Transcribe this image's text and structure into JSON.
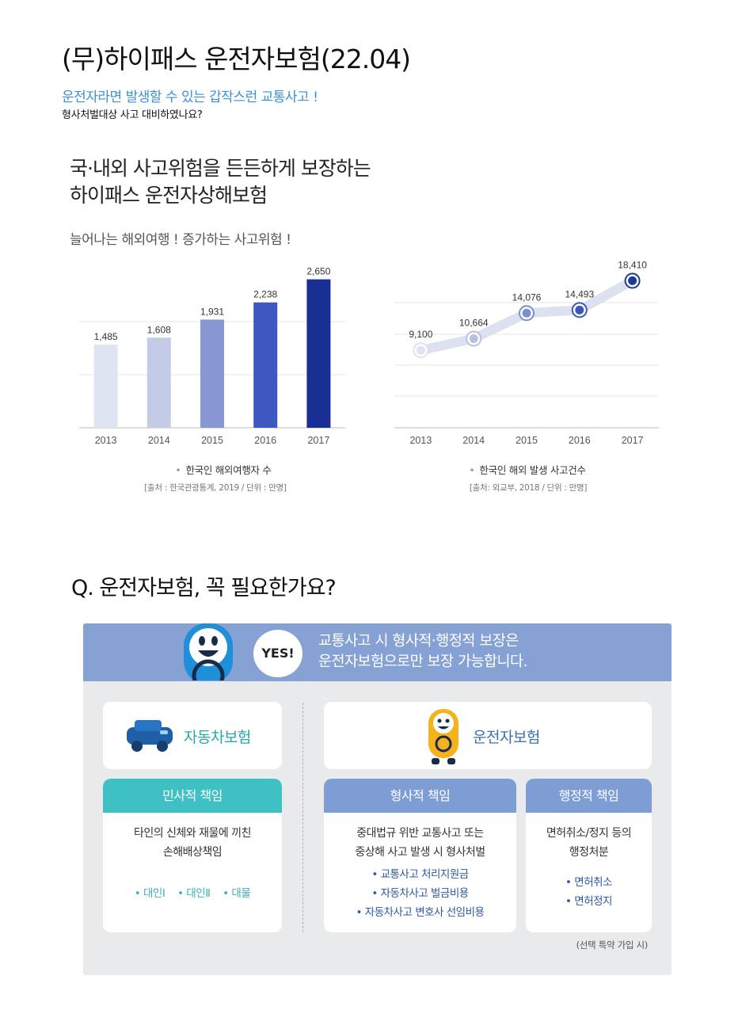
{
  "page": {
    "title": "(무)하이패스 운전자보험(22.04)",
    "subtitle_blue": "운전자라면 발생할 수 있는 갑작스런 교통사고 !",
    "subtitle_black": "형사처벌대상 사고 대비하였나요?"
  },
  "headline": {
    "line1": "국·내외 사고위험을 든든하게 보장하는",
    "line2": "하이패스 운전자상해보험",
    "tagline": "늘어나는 해외여행 ! 증가하는 사고위험 !"
  },
  "chart_data": [
    {
      "type": "bar",
      "categories": [
        "2013",
        "2014",
        "2015",
        "2016",
        "2017"
      ],
      "values": [
        1485,
        1608,
        1931,
        2238,
        2650
      ],
      "value_labels": [
        "1,485",
        "1,608",
        "1,931",
        "2,238",
        "2,650"
      ],
      "caption": "한국인 해외여행자 수",
      "source": "[출처 : 한국관광통계, 2019 / 단위 : 만명]",
      "colors": [
        "#dfe4f2",
        "#c3cbe6",
        "#8797d4",
        "#3e58c2",
        "#1a2f94"
      ]
    },
    {
      "type": "line",
      "categories": [
        "2013",
        "2014",
        "2015",
        "2016",
        "2017"
      ],
      "values": [
        9100,
        10664,
        14076,
        14493,
        18410
      ],
      "value_labels": [
        "9,100",
        "10,664",
        "14,076",
        "14,493",
        "18,410"
      ],
      "caption": "한국인 해외 발생 사고건수",
      "source": "[출처: 외교부, 2018 / 단위 : 만명]",
      "colors": [
        "#dfe3ee",
        "#b8c1de",
        "#7b8fd0",
        "#3f58b8",
        "#1d3a99"
      ]
    }
  ],
  "question": {
    "title": "Q. 운전자보험, 꼭 필요한가요?"
  },
  "panel": {
    "yes": "YES!",
    "head_line1": "교통사고 시 형사적·행정적 보장은",
    "head_line2": "운전자보험으로만 보장 가능합니다.",
    "car_insurance_label": "자동차보험",
    "driver_insurance_label": "운전자보험",
    "civil": {
      "title": "민사적 책임",
      "desc_line1": "타인의 신체와 재물에 끼친",
      "desc_line2": "손해배상책임",
      "items": [
        "• 대인Ⅰ",
        "• 대인Ⅱ",
        "• 대물"
      ]
    },
    "criminal": {
      "title": "형사적 책임",
      "desc_line1": "중대법규 위반 교통사고 또는",
      "desc_line2": "중상해 사고 발생 시 형사처벌",
      "items": [
        "• 교통사고 처리지원금",
        "• 자동차사고 벌금비용",
        "• 자동차사고 변호사 선임비용"
      ]
    },
    "admin": {
      "title": "행정적 책임",
      "desc_line1": "면허취소/정지 등의",
      "desc_line2": "행정처분",
      "items": [
        "• 면허취소",
        "• 면허정지"
      ]
    },
    "note": "(선택 특약 가입 시)",
    "colors": {
      "header": "#86a2d4",
      "civil": "#3ec0c4",
      "criminal": "#7e9dd5",
      "car_label": "#2aa6a8",
      "driver_label": "#3b6fb8"
    }
  }
}
